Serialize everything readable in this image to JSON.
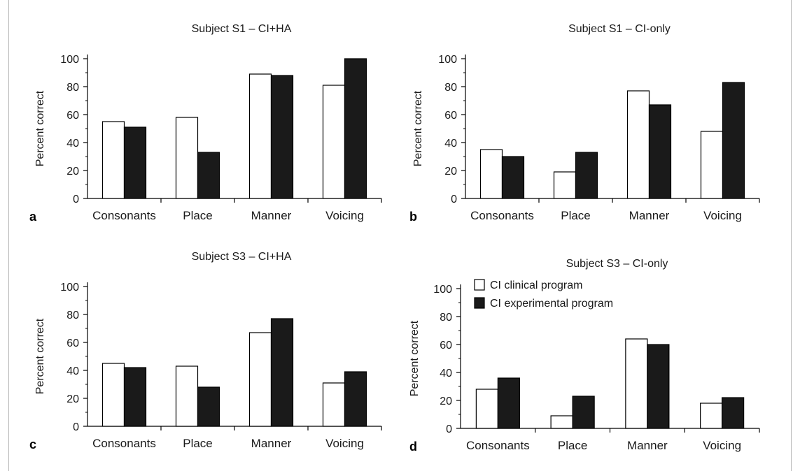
{
  "chart_data": [
    {
      "panel_label": "a",
      "type": "bar",
      "title": "Subject S1 – CI+HA",
      "ylabel": "Percent correct",
      "categories": [
        "Consonants",
        "Place",
        "Manner",
        "Voicing"
      ],
      "yticks": [
        "0",
        "20",
        "40",
        "60",
        "80",
        "100"
      ],
      "ylim": [
        0,
        100
      ],
      "series": [
        {
          "values": [
            55,
            58,
            89,
            81
          ],
          "color": "#ffffff"
        },
        {
          "values": [
            51,
            33,
            88,
            100
          ],
          "color": "#1a1a1a"
        }
      ]
    },
    {
      "panel_label": "b",
      "type": "bar",
      "title": "Subject S1 – CI-only",
      "ylabel": "Percent correct",
      "categories": [
        "Consonants",
        "Place",
        "Manner",
        "Voicing"
      ],
      "yticks": [
        "0",
        "20",
        "40",
        "60",
        "80",
        "100"
      ],
      "ylim": [
        0,
        100
      ],
      "series": [
        {
          "values": [
            35,
            19,
            77,
            48
          ],
          "color": "#ffffff"
        },
        {
          "values": [
            30,
            33,
            67,
            83
          ],
          "color": "#1a1a1a"
        }
      ]
    },
    {
      "panel_label": "c",
      "type": "bar",
      "title": "Subject S3 – CI+HA",
      "ylabel": "Percent correct",
      "categories": [
        "Consonants",
        "Place",
        "Manner",
        "Voicing"
      ],
      "yticks": [
        "0",
        "20",
        "40",
        "60",
        "80",
        "100"
      ],
      "ylim": [
        0,
        100
      ],
      "series": [
        {
          "values": [
            45,
            43,
            67,
            31
          ],
          "color": "#ffffff"
        },
        {
          "values": [
            42,
            28,
            77,
            39
          ],
          "color": "#1a1a1a"
        }
      ]
    },
    {
      "panel_label": "d",
      "type": "bar",
      "title": "Subject S3 – CI-only",
      "ylabel": "Percent correct",
      "categories": [
        "Consonants",
        "Place",
        "Manner",
        "Voicing"
      ],
      "yticks": [
        "0",
        "20",
        "40",
        "60",
        "80",
        "100"
      ],
      "ylim": [
        0,
        100
      ],
      "legend_position": "top-left",
      "series": [
        {
          "name": "CI clinical program",
          "values": [
            28,
            9,
            64,
            18
          ],
          "color": "#ffffff"
        },
        {
          "name": "CI experimental program",
          "values": [
            36,
            23,
            60,
            22
          ],
          "color": "#1a1a1a"
        }
      ]
    }
  ]
}
